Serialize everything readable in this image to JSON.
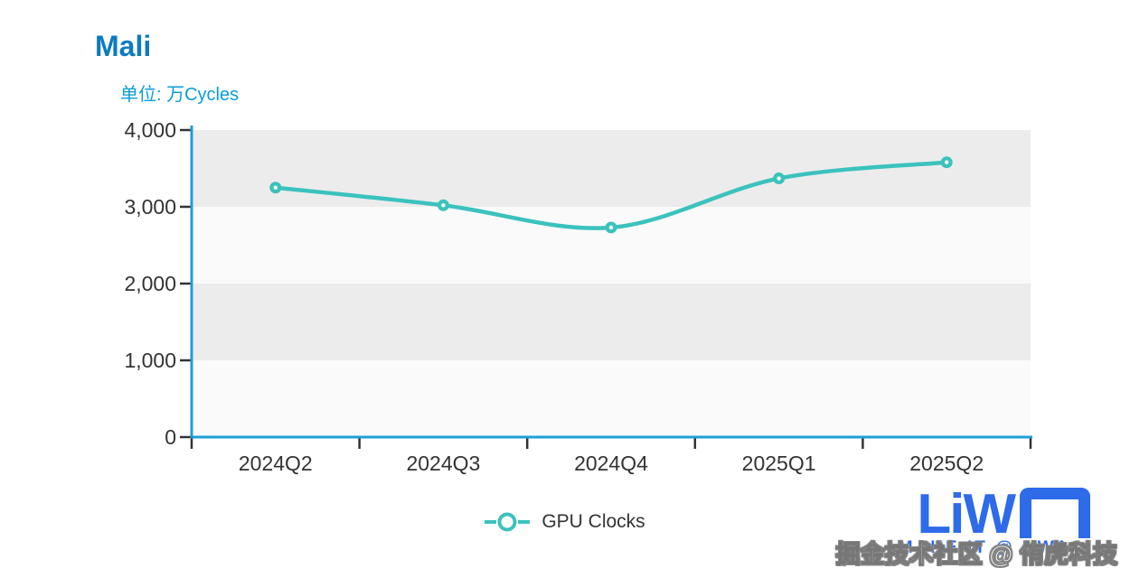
{
  "header": {
    "title": "Mali",
    "subtitle": "单位: 万Cycles"
  },
  "chart_data": {
    "type": "line",
    "title": "Mali",
    "unit_label": "单位: 万Cycles",
    "categories": [
      "2024Q2",
      "2024Q3",
      "2024Q4",
      "2025Q1",
      "2025Q2"
    ],
    "series": [
      {
        "name": "GPU Clocks",
        "values": [
          3250,
          3020,
          2730,
          3370,
          3580
        ]
      }
    ],
    "ylim": [
      0,
      4000
    ],
    "yticks": [
      0,
      1000,
      2000,
      3000,
      4000
    ],
    "ytick_labels": [
      "0",
      "1,000",
      "2,000",
      "3,000",
      "4,000"
    ],
    "smooth": true,
    "grid_bands": true,
    "legend_position": "bottom"
  },
  "legend": {
    "items": [
      {
        "label": "GPU Clocks",
        "marker": "hollow-circle-with-line"
      }
    ]
  },
  "colors": {
    "title_blue": "#0d7ac1",
    "subtitle_blue": "#0a9dd8",
    "axis_blue": "#1e9ed6",
    "series_teal": "#3bc2bd",
    "band_gray": "#ececec",
    "band_light": "#fafafa",
    "label_dark": "#333333",
    "tick_dark": "#333333",
    "marker_core_white": "#ffffff",
    "logo_blue": "#2d6be9"
  },
  "watermark": {
    "logo_text": "LiW",
    "tagline": "MAKE IT @ UWA",
    "overlay_text": "掘金技术社区 @ 侑虎科技"
  }
}
